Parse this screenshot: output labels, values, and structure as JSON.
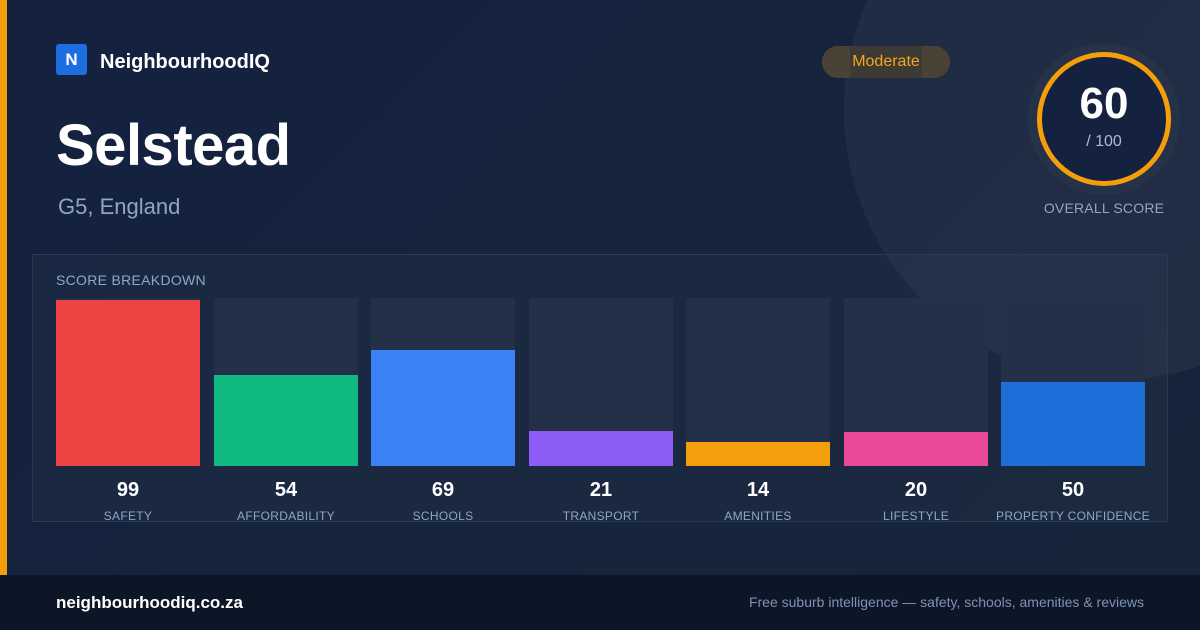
{
  "brand": {
    "mark": "N",
    "name": "NeighbourhoodIQ",
    "accent_color": "#f59e0b",
    "mark_color": "#1d6ee0"
  },
  "suburb": {
    "name": "Selstead",
    "location": "G5, England"
  },
  "rating_badge": {
    "label": "Moderate",
    "color": "#f5a524"
  },
  "overall_score": {
    "value": "60",
    "max": "/ 100",
    "caption": "OVERALL SCORE"
  },
  "breakdown": {
    "title": "SCORE BREAKDOWN",
    "items": [
      {
        "label": "SAFETY",
        "value": "99",
        "color": "#ef4444"
      },
      {
        "label": "AFFORDABILITY",
        "value": "54",
        "color": "#10b981"
      },
      {
        "label": "SCHOOLS",
        "value": "69",
        "color": "#3b82f6"
      },
      {
        "label": "TRANSPORT",
        "value": "21",
        "color": "#8b5cf6"
      },
      {
        "label": "AMENITIES",
        "value": "14",
        "color": "#f59e0b"
      },
      {
        "label": "LIFESTYLE",
        "value": "20",
        "color": "#ec4899"
      },
      {
        "label": "PROPERTY CONFIDENCE",
        "value": "50",
        "color": "#1d6ed8"
      }
    ]
  },
  "footer": {
    "url": "neighbourhoodiq.co.za",
    "tagline": "Free suburb intelligence — safety, schools, amenities & reviews"
  }
}
